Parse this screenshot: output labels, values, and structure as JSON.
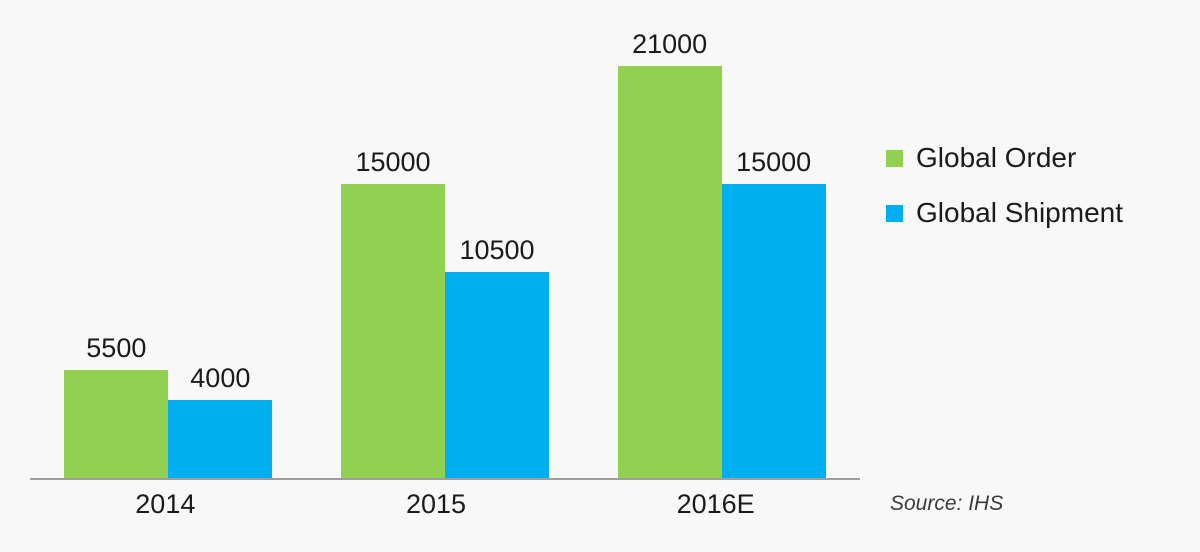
{
  "chart_data": {
    "type": "bar",
    "categories": [
      "2014",
      "2015",
      "2016E"
    ],
    "series": [
      {
        "name": "Global Order",
        "color": "#91D050",
        "values": [
          5500,
          15000,
          21000
        ]
      },
      {
        "name": "Global Shipment",
        "color": "#00AEEF",
        "values": [
          4000,
          10500,
          15000
        ]
      }
    ],
    "title": "",
    "xlabel": "",
    "ylabel": "",
    "ylim": [
      0,
      22900
    ],
    "grid": false,
    "value_labels": true,
    "legend_position": "right"
  },
  "source_note": "Source: IHS",
  "colors": {
    "axis_line": "#9e9e9e",
    "text": "#1b1b1b",
    "background": "#f8f8f8"
  }
}
